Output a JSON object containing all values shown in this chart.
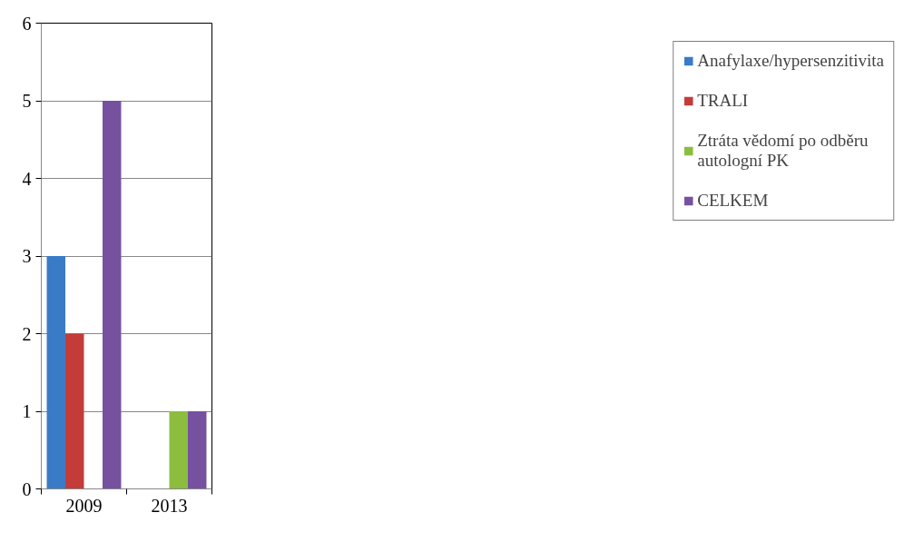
{
  "chart_data": {
    "type": "bar",
    "categories": [
      "2009",
      "2013"
    ],
    "series": [
      {
        "name": "Anafylaxe/hypersenzitivita",
        "color": "#3a7bc8",
        "values": [
          3,
          null
        ]
      },
      {
        "name": "TRALI",
        "color": "#c43c39",
        "values": [
          2,
          null
        ]
      },
      {
        "name": "Ztráta vědomí po odběru autologní PK",
        "color": "#8cbd3f",
        "values": [
          null,
          1
        ]
      },
      {
        "name": "CELKEM",
        "color": "#7651a0",
        "values": [
          5,
          1
        ]
      }
    ],
    "ylim": [
      0,
      6
    ],
    "yticks": [
      0,
      1,
      2,
      3,
      4,
      5,
      6
    ],
    "grid": "y",
    "legend": "right"
  }
}
